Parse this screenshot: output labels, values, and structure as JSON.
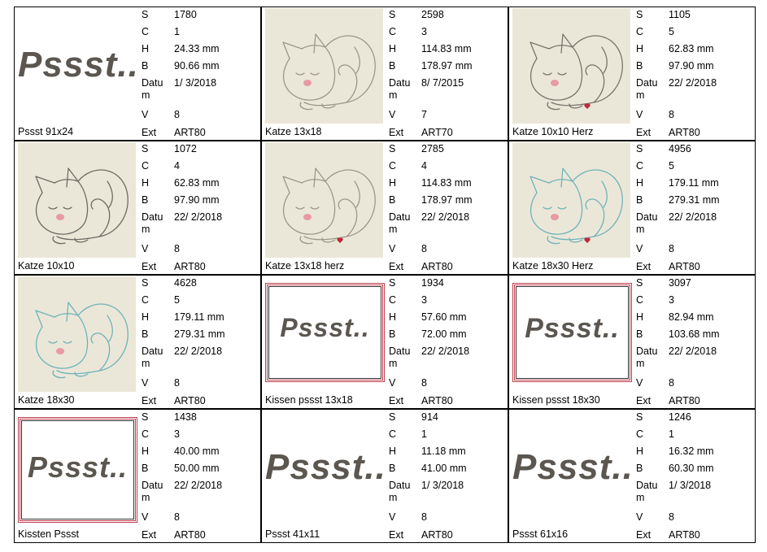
{
  "field_labels": [
    "S",
    "C",
    "H",
    "B",
    "Datum",
    "V",
    "Ext"
  ],
  "items": [
    {
      "name": "Pssst 91x24",
      "values": [
        "1780",
        "1",
        "24.33 mm",
        "90.66 mm",
        "1/ 3/2018",
        "8",
        "ART80"
      ],
      "thumbnail": {
        "kind": "text",
        "text": "Pssst..",
        "size": 44
      }
    },
    {
      "name": "Katze 13x18",
      "values": [
        "2598",
        "3",
        "114.83 mm",
        "178.97 mm",
        "8/ 7/2015",
        "7",
        "ART70"
      ],
      "thumbnail": {
        "kind": "cat",
        "line_color": "#9a978c",
        "heart": false
      }
    },
    {
      "name": "Katze 10x10 Herz",
      "values": [
        "1105",
        "5",
        "62.83 mm",
        "97.90 mm",
        "22/ 2/2018",
        "8",
        "ART80"
      ],
      "thumbnail": {
        "kind": "cat",
        "line_color": "#77746c",
        "heart": true
      }
    },
    {
      "name": "Katze 10x10",
      "values": [
        "1072",
        "4",
        "62.83 mm",
        "97.90 mm",
        "22/ 2/2018",
        "8",
        "ART80"
      ],
      "thumbnail": {
        "kind": "cat",
        "line_color": "#6e6b64",
        "heart": false
      }
    },
    {
      "name": "Katze 13x18 herz",
      "values": [
        "2785",
        "4",
        "114.83 mm",
        "178.97 mm",
        "22/ 2/2018",
        "8",
        "ART80"
      ],
      "thumbnail": {
        "kind": "cat",
        "line_color": "#9a978c",
        "heart": true
      }
    },
    {
      "name": "Katze 18x30 Herz",
      "values": [
        "4956",
        "5",
        "179.11 mm",
        "279.31 mm",
        "22/ 2/2018",
        "8",
        "ART80"
      ],
      "thumbnail": {
        "kind": "cat",
        "line_color": "#6fb3b8",
        "heart": true
      }
    },
    {
      "name": "Katze 18x30",
      "values": [
        "4628",
        "5",
        "179.11 mm",
        "279.31 mm",
        "22/ 2/2018",
        "8",
        "ART80"
      ],
      "thumbnail": {
        "kind": "cat",
        "line_color": "#6fb3b8",
        "heart": false
      }
    },
    {
      "name": "Kissen pssst 13x18",
      "values": [
        "1934",
        "3",
        "57.60 mm",
        "72.00 mm",
        "22/ 2/2018",
        "8",
        "ART80"
      ],
      "thumbnail": {
        "kind": "frame",
        "text": "Pssst..",
        "size": 32
      }
    },
    {
      "name": "Kissen pssst 18x30",
      "values": [
        "3097",
        "3",
        "82.94 mm",
        "103.68 mm",
        "22/ 2/2018",
        "8",
        "ART80"
      ],
      "thumbnail": {
        "kind": "frame",
        "text": "Pssst..",
        "size": 34
      }
    },
    {
      "name": "Kissten Pssst",
      "values": [
        "1438",
        "3",
        "40.00 mm",
        "50.00 mm",
        "22/ 2/2018",
        "8",
        "ART80"
      ],
      "thumbnail": {
        "kind": "frame",
        "text": "Pssst..",
        "size": 36
      }
    },
    {
      "name": "Pssst 41x11",
      "values": [
        "914",
        "1",
        "11.18 mm",
        "41.00 mm",
        "1/ 3/2018",
        "8",
        "ART80"
      ],
      "thumbnail": {
        "kind": "text",
        "text": "Pssst..",
        "size": 44
      }
    },
    {
      "name": "Pssst 61x16",
      "values": [
        "1246",
        "1",
        "16.32 mm",
        "60.30 mm",
        "1/ 3/2018",
        "8",
        "ART80"
      ],
      "thumbnail": {
        "kind": "text",
        "text": "Pssst..",
        "size": 44
      }
    }
  ]
}
